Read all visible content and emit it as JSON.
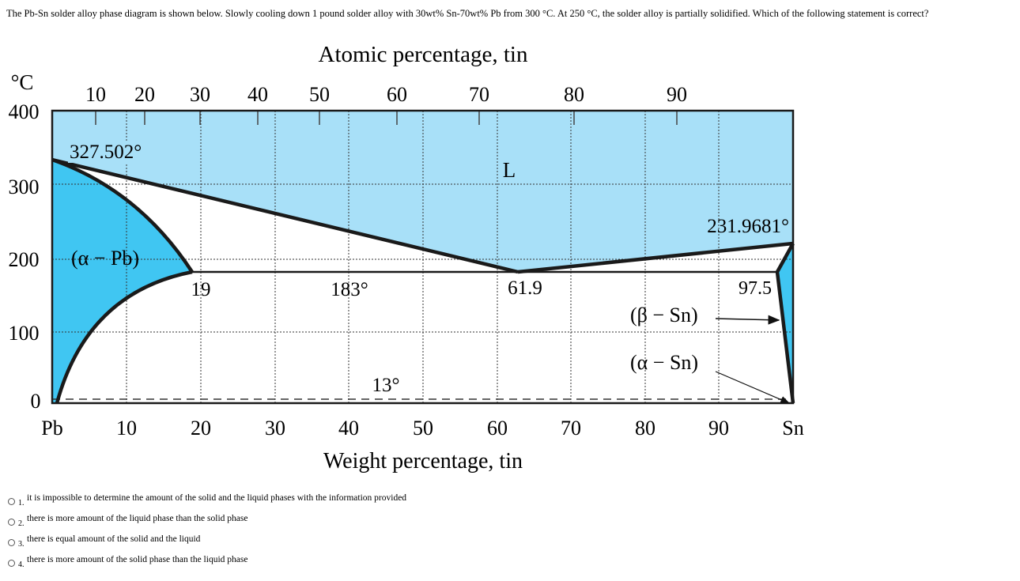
{
  "question": "The Pb-Sn solder alloy phase diagram is shown below.  Slowly cooling down 1 pound solder alloy with 30wt% Sn-70wt% Pb from 300 °C.  At 250 °C, the solder alloy is partially solidified. Which of the following statement is correct?",
  "diagram": {
    "top_title": "Atomic percentage, tin",
    "bottom_title": "Weight percentage, tin",
    "y_unit": "°C",
    "y_ticks": [
      "400",
      "300",
      "200",
      "100",
      "0"
    ],
    "x_ticks_wt": [
      "10",
      "20",
      "30",
      "40",
      "50",
      "60",
      "70",
      "80",
      "90"
    ],
    "x_ticks_at": [
      "10",
      "20",
      "30",
      "40",
      "50",
      "60",
      "70",
      "80",
      "90"
    ],
    "left_element": "Pb",
    "right_element": "Sn",
    "labels": {
      "pb_melt": "327.502°",
      "liquid": "L",
      "sn_melt": "231.9681°",
      "alpha_pb": "(α − Pb)",
      "alpha_solvus": "19",
      "eutectic_temp": "183°",
      "eutectic_comp": "61.9",
      "beta_solvus": "97.5",
      "beta_sn": "(β − Sn)",
      "alpha_sn": "(α − Sn)",
      "transition": "13°"
    },
    "colors": {
      "liquid": "#a8e0f8",
      "solid": "#40c6f2",
      "line": "#1a1a1a"
    }
  },
  "options": [
    {
      "num": "1.",
      "text": "it is impossible to determine the amount of the solid and the liquid phases with the information provided"
    },
    {
      "num": "2.",
      "text": "there is more amount of the liquid phase than the solid phase"
    },
    {
      "num": "3.",
      "text": "there is equal amount of the solid and the liquid"
    },
    {
      "num": "4.",
      "text": "there is more amount of the solid phase than the liquid phase"
    }
  ]
}
